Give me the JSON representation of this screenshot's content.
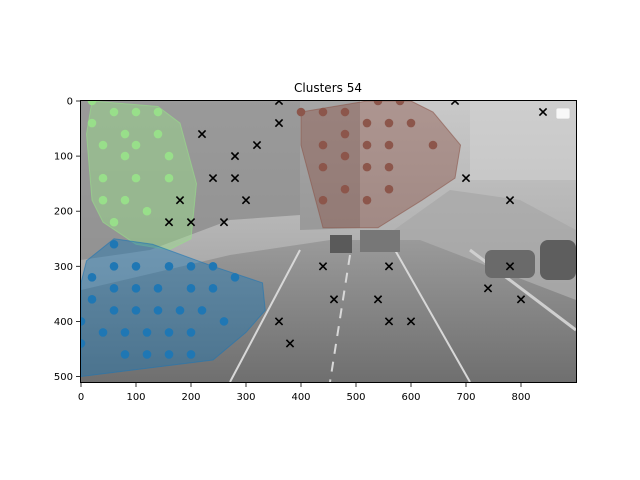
{
  "chart_data": {
    "type": "scatter",
    "title": "Clusters 54",
    "xlabel": "",
    "ylabel": "",
    "xlim": [
      0,
      900
    ],
    "ylim": [
      510,
      0
    ],
    "y_inverted": true,
    "background": "grayscale street photo",
    "grid": false,
    "legend": "top-right, empty",
    "x_ticks": [
      0,
      100,
      200,
      300,
      400,
      500,
      600,
      700,
      800
    ],
    "y_ticks": [
      0,
      100,
      200,
      300,
      400,
      500
    ],
    "colors": {
      "blue": "#1f77b4",
      "green": "#98df8a",
      "brown": "#8c564b",
      "outlier": "#000000"
    },
    "series": [
      {
        "color": "#98df8a",
        "marker": "circle",
        "hull": [
          [
            20,
            0
          ],
          [
            140,
            10
          ],
          [
            180,
            40
          ],
          [
            210,
            150
          ],
          [
            200,
            250
          ],
          [
            160,
            270
          ],
          [
            100,
            260
          ],
          [
            40,
            220
          ],
          [
            20,
            180
          ],
          [
            10,
            60
          ]
        ],
        "points": [
          [
            20,
            0
          ],
          [
            60,
            20
          ],
          [
            100,
            20
          ],
          [
            140,
            20
          ],
          [
            20,
            40
          ],
          [
            80,
            60
          ],
          [
            140,
            60
          ],
          [
            40,
            80
          ],
          [
            100,
            80
          ],
          [
            160,
            100
          ],
          [
            80,
            100
          ],
          [
            40,
            140
          ],
          [
            100,
            140
          ],
          [
            160,
            140
          ],
          [
            40,
            180
          ],
          [
            80,
            180
          ],
          [
            120,
            200
          ],
          [
            60,
            220
          ]
        ]
      },
      {
        "color": "#1f77b4",
        "marker": "circle",
        "hull": [
          [
            60,
            250
          ],
          [
            130,
            260
          ],
          [
            240,
            300
          ],
          [
            330,
            330
          ],
          [
            335,
            380
          ],
          [
            300,
            420
          ],
          [
            240,
            470
          ],
          [
            0,
            500
          ],
          [
            0,
            330
          ],
          [
            10,
            290
          ]
        ],
        "points": [
          [
            60,
            260
          ],
          [
            20,
            320
          ],
          [
            60,
            300
          ],
          [
            100,
            300
          ],
          [
            160,
            300
          ],
          [
            200,
            300
          ],
          [
            240,
            300
          ],
          [
            280,
            320
          ],
          [
            60,
            340
          ],
          [
            100,
            340
          ],
          [
            140,
            340
          ],
          [
            200,
            340
          ],
          [
            240,
            340
          ],
          [
            20,
            360
          ],
          [
            60,
            380
          ],
          [
            100,
            380
          ],
          [
            140,
            380
          ],
          [
            180,
            380
          ],
          [
            220,
            380
          ],
          [
            260,
            400
          ],
          [
            0,
            400
          ],
          [
            40,
            420
          ],
          [
            80,
            420
          ],
          [
            120,
            420
          ],
          [
            160,
            420
          ],
          [
            200,
            420
          ],
          [
            0,
            440
          ],
          [
            80,
            460
          ],
          [
            120,
            460
          ],
          [
            160,
            460
          ],
          [
            200,
            460
          ]
        ]
      },
      {
        "color": "#8c564b",
        "marker": "circle",
        "hull": [
          [
            400,
            20
          ],
          [
            520,
            0
          ],
          [
            600,
            0
          ],
          [
            640,
            20
          ],
          [
            690,
            80
          ],
          [
            680,
            140
          ],
          [
            620,
            180
          ],
          [
            540,
            230
          ],
          [
            440,
            230
          ],
          [
            400,
            80
          ]
        ],
        "points": [
          [
            400,
            20
          ],
          [
            440,
            20
          ],
          [
            480,
            20
          ],
          [
            540,
            0
          ],
          [
            580,
            0
          ],
          [
            520,
            40
          ],
          [
            560,
            40
          ],
          [
            600,
            40
          ],
          [
            480,
            60
          ],
          [
            440,
            80
          ],
          [
            520,
            80
          ],
          [
            560,
            80
          ],
          [
            640,
            80
          ],
          [
            480,
            100
          ],
          [
            440,
            120
          ],
          [
            520,
            120
          ],
          [
            560,
            120
          ],
          [
            480,
            160
          ],
          [
            560,
            160
          ],
          [
            440,
            180
          ],
          [
            520,
            180
          ]
        ]
      },
      {
        "color": "#000000",
        "marker": "x",
        "points": [
          [
            360,
            0
          ],
          [
            680,
            0
          ],
          [
            840,
            20
          ],
          [
            360,
            40
          ],
          [
            220,
            60
          ],
          [
            320,
            80
          ],
          [
            280,
            100
          ],
          [
            240,
            140
          ],
          [
            280,
            140
          ],
          [
            700,
            140
          ],
          [
            180,
            180
          ],
          [
            300,
            180
          ],
          [
            780,
            180
          ],
          [
            160,
            220
          ],
          [
            200,
            220
          ],
          [
            260,
            220
          ],
          [
            440,
            300
          ],
          [
            560,
            300
          ],
          [
            780,
            300
          ],
          [
            740,
            340
          ],
          [
            460,
            360
          ],
          [
            540,
            360
          ],
          [
            800,
            360
          ],
          [
            360,
            400
          ],
          [
            560,
            400
          ],
          [
            600,
            400
          ],
          [
            380,
            440
          ]
        ]
      }
    ]
  }
}
